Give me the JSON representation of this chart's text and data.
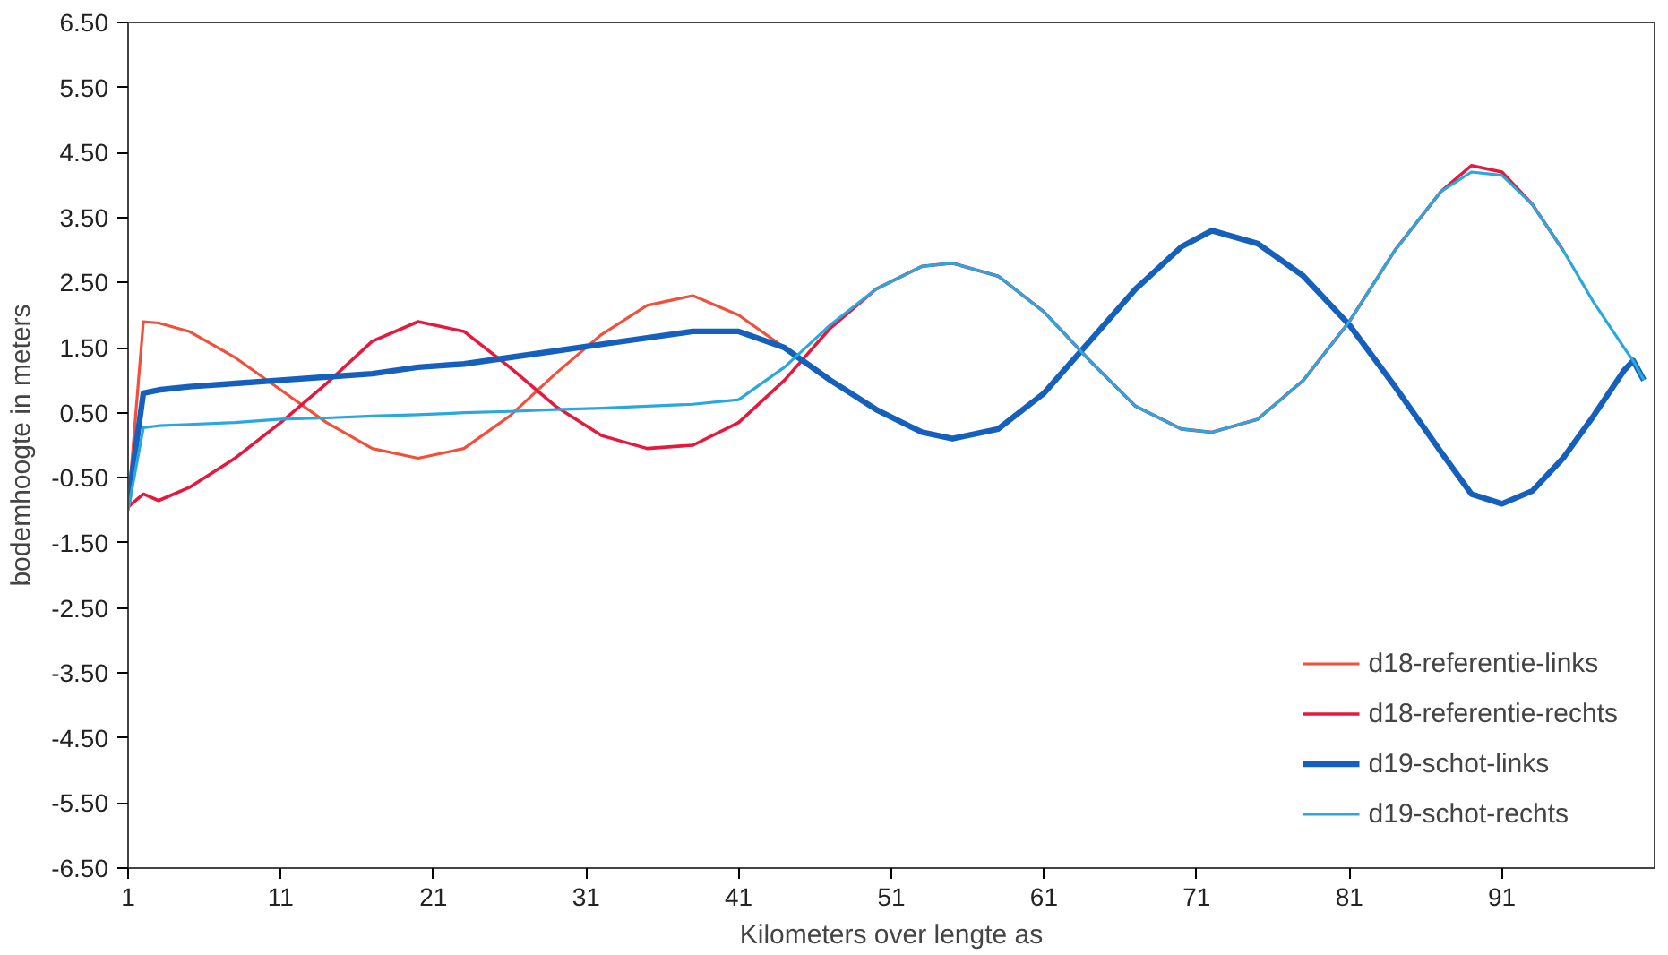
{
  "chart_data": {
    "type": "line",
    "xlabel": "Kilometers over lengte as",
    "ylabel": "bodemhoogte in meters",
    "xlim": [
      1,
      101
    ],
    "xticks": [
      1,
      11,
      21,
      31,
      41,
      51,
      61,
      71,
      81,
      91
    ],
    "ylim": [
      -6.5,
      6.5
    ],
    "yticks": [
      {
        "value": -6.5,
        "label": "-6.50"
      },
      {
        "value": -5.5,
        "label": "-5.50"
      },
      {
        "value": -4.5,
        "label": "-4.50"
      },
      {
        "value": -3.5,
        "label": "-3.50"
      },
      {
        "value": -2.5,
        "label": "-2.50"
      },
      {
        "value": -1.5,
        "label": "-1.50"
      },
      {
        "value": -0.5,
        "label": "-0.50"
      },
      {
        "value": 0.5,
        "label": "0.50"
      },
      {
        "value": 1.5,
        "label": "1.50"
      },
      {
        "value": 2.5,
        "label": "2.50"
      },
      {
        "value": 3.5,
        "label": "3.50"
      },
      {
        "value": 4.5,
        "label": "4.50"
      },
      {
        "value": 5.5,
        "label": "5.50"
      },
      {
        "value": 6.5,
        "label": "6.50"
      }
    ],
    "x": [
      1,
      2,
      3,
      5,
      8,
      11,
      14,
      17,
      20,
      23,
      26,
      29,
      32,
      35,
      38,
      41,
      44,
      47,
      50,
      53,
      55,
      58,
      61,
      64,
      67,
      70,
      72,
      75,
      78,
      81,
      84,
      87,
      89,
      91,
      93,
      95,
      97,
      99,
      99.6,
      100.3
    ],
    "grid": false,
    "legend": "bottom right",
    "line_style": "solid",
    "marker": "none",
    "series": [
      {
        "name": "d18-referentie-links",
        "color": "#f0503c",
        "values": [
          -0.95,
          1.9,
          1.88,
          1.75,
          1.35,
          0.85,
          0.35,
          -0.05,
          -0.2,
          -0.05,
          0.45,
          1.1,
          1.7,
          2.15,
          2.3,
          2.0,
          1.5,
          null,
          null,
          null,
          null,
          null,
          null,
          null,
          null,
          null,
          null,
          null,
          null,
          null,
          null,
          null,
          null,
          null,
          null,
          null,
          null,
          null,
          null,
          null
        ]
      },
      {
        "name": "d18-referentie-rechts",
        "color": "#e6193c",
        "values": [
          -0.95,
          -0.75,
          -0.85,
          -0.65,
          -0.2,
          0.35,
          0.95,
          1.6,
          1.9,
          1.75,
          1.2,
          0.6,
          0.15,
          -0.05,
          0.0,
          0.35,
          1.0,
          1.8,
          2.4,
          2.75,
          2.8,
          2.6,
          2.05,
          1.3,
          0.6,
          0.25,
          0.2,
          0.4,
          1.0,
          1.9,
          3.0,
          3.9,
          4.3,
          4.2,
          3.7,
          3.0,
          null,
          null,
          null,
          null
        ]
      },
      {
        "name": "d19-schot-links",
        "color": "#1560bd",
        "values": [
          -0.9,
          0.8,
          0.85,
          0.9,
          0.95,
          1.0,
          1.05,
          1.1,
          1.2,
          1.25,
          1.35,
          1.45,
          1.55,
          1.65,
          1.75,
          1.75,
          1.5,
          1.0,
          0.55,
          0.2,
          0.1,
          0.25,
          0.8,
          1.6,
          2.4,
          3.05,
          3.3,
          3.1,
          2.6,
          1.85,
          0.9,
          -0.1,
          -0.75,
          -0.9,
          -0.7,
          -0.2,
          0.45,
          1.15,
          1.3,
          1.0
        ]
      },
      {
        "name": "d19-schot-rechts",
        "color": "#29a8e0",
        "values": [
          -1.0,
          0.27,
          0.3,
          0.32,
          0.35,
          0.4,
          0.42,
          0.45,
          0.47,
          0.5,
          0.52,
          0.55,
          0.57,
          0.6,
          0.63,
          0.7,
          1.2,
          1.85,
          2.4,
          2.75,
          2.8,
          2.6,
          2.05,
          1.3,
          0.6,
          0.25,
          0.2,
          0.4,
          1.0,
          1.9,
          3.0,
          3.9,
          4.2,
          4.15,
          3.7,
          3.0,
          2.2,
          1.5,
          1.3,
          1.0
        ]
      }
    ]
  }
}
